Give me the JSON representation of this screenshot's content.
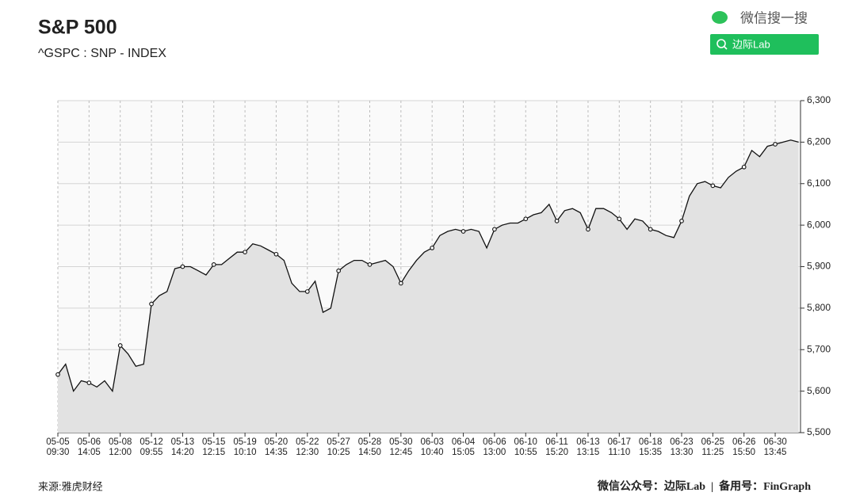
{
  "chart_data": {
    "type": "line",
    "title": "S&P 500",
    "subtitle": "^GSPC : SNP - INDEX",
    "watermark": "微信搜一搜",
    "search_label": "边际Lab",
    "source": "来源:雅虎财经",
    "footer": "微信公众号：边际Lab  |  备用号：FinGraph",
    "categories": [
      "05-05\n09:30",
      null,
      null,
      null,
      "05-06\n14:05",
      null,
      null,
      null,
      "05-08\n12:00",
      null,
      null,
      null,
      "05-12\n09:55",
      null,
      null,
      null,
      "05-13\n14:20",
      null,
      null,
      null,
      "05-15\n12:15",
      null,
      null,
      null,
      "05-19\n10:10",
      null,
      null,
      null,
      "05-20\n14:35",
      null,
      null,
      null,
      "05-22\n12:30",
      null,
      null,
      null,
      "05-27\n10:25",
      null,
      null,
      null,
      "05-28\n14:50",
      null,
      null,
      null,
      "05-30\n12:45",
      null,
      null,
      null,
      "06-03\n10:40",
      null,
      null,
      null,
      "06-04\n15:05",
      null,
      null,
      null,
      "06-06\n13:00",
      null,
      null,
      null,
      "06-10\n10:55",
      null,
      null,
      null,
      "06-11\n15:20",
      null,
      null,
      null,
      "06-13\n13:15",
      null,
      null,
      null,
      "06-17\n11:10",
      null,
      null,
      null,
      "06-18\n15:35",
      null,
      null,
      null,
      "06-23\n13:30",
      null,
      null,
      null,
      "06-25\n11:25",
      null,
      null,
      null,
      "06-26\n15:50",
      null,
      null,
      null,
      "06-30\n13:45",
      null,
      null,
      null
    ],
    "series": [
      {
        "name": "S&P 500",
        "color": "#111111",
        "values": [
          5640,
          5665,
          5600,
          5625,
          5620,
          5610,
          5625,
          5600,
          5710,
          5690,
          5660,
          5665,
          5810,
          5830,
          5840,
          5895,
          5900,
          5900,
          5890,
          5880,
          5905,
          5905,
          5920,
          5935,
          5935,
          5955,
          5950,
          5940,
          5930,
          5915,
          5860,
          5840,
          5840,
          5865,
          5790,
          5800,
          5890,
          5905,
          5915,
          5915,
          5905,
          5910,
          5915,
          5900,
          5860,
          5890,
          5915,
          5935,
          5945,
          5975,
          5985,
          5990,
          5985,
          5990,
          5985,
          5945,
          5990,
          6000,
          6005,
          6005,
          6015,
          6025,
          6030,
          6050,
          6010,
          6035,
          6040,
          6030,
          5990,
          6040,
          6040,
          6030,
          6015,
          5990,
          6015,
          6010,
          5990,
          5985,
          5975,
          5970,
          6010,
          6070,
          6100,
          6105,
          6095,
          6090,
          6115,
          6130,
          6140,
          6180,
          6165,
          6190,
          6195,
          6200,
          6205,
          6200
        ]
      }
    ],
    "ylim": [
      5500,
      6300
    ],
    "yticks": [
      {
        "value": 5500,
        "label": "5,500"
      },
      {
        "value": 5600,
        "label": "5,600"
      },
      {
        "value": 5700,
        "label": "5,700"
      },
      {
        "value": 5800,
        "label": "5,800"
      },
      {
        "value": 5900,
        "label": "5,900"
      },
      {
        "value": 6000,
        "label": "6,000"
      },
      {
        "value": 6100,
        "label": "6,100"
      },
      {
        "value": 6200,
        "label": "6,200"
      },
      {
        "value": 6300,
        "label": "6,300"
      }
    ],
    "grid": true
  }
}
